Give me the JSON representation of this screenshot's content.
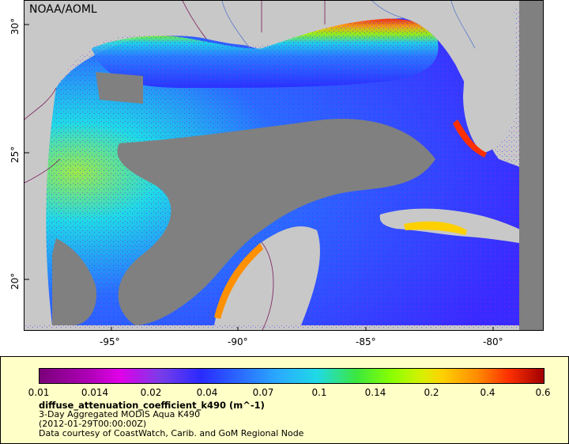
{
  "map": {
    "credit": "NOAA/AOML",
    "lon_ticks": [
      "-95°",
      "-90°",
      "-85°",
      "-80°"
    ],
    "lat_ticks": [
      "30°",
      "25°",
      "20°"
    ],
    "land_color": "#c8c8c8",
    "nodata_color": "#808080"
  },
  "legend": {
    "ticks": [
      "0.01",
      "0.014",
      "0.02",
      "0.04",
      "0.07",
      "0.1",
      "0.14",
      "0.2",
      "0.4",
      "0.6"
    ],
    "variable": "diffuse_attenuation_coefficient_k490 (m^-1)",
    "product": "3-Day Aggregated MODIS Aqua K490",
    "time": "(2012-01-29T00:00:00Z)",
    "source": "Data courtesy of CoastWatch, Carib. and GoM Regional Node"
  }
}
